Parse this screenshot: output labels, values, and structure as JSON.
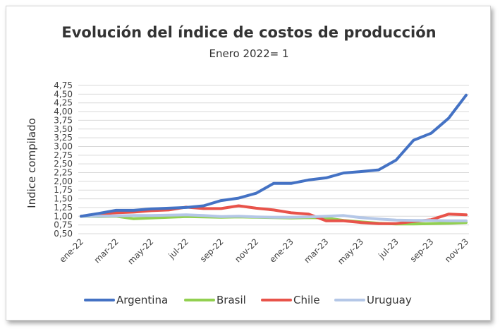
{
  "chart_data": {
    "type": "line",
    "title": "Evolución del índice de costos de producción",
    "subtitle": "Enero 2022= 1",
    "xlabel": "",
    "ylabel": "Indice compilado",
    "ylim": [
      0.5,
      4.75
    ],
    "yticks": [
      "0,50",
      "0,75",
      "1,00",
      "1,25",
      "1,50",
      "1,75",
      "2,00",
      "2,25",
      "2,50",
      "2,75",
      "3,00",
      "3,25",
      "3,50",
      "3,75",
      "4,00",
      "4,25",
      "4,50",
      "4,75"
    ],
    "xtick_labels": [
      "ene-22",
      "mar-22",
      "may-22",
      "jul-22",
      "sep-22",
      "nov-22",
      "ene-23",
      "mar-23",
      "may-23",
      "jul-23",
      "sep-23",
      "nov-23"
    ],
    "categories": [
      "ene-22",
      "feb-22",
      "mar-22",
      "abr-22",
      "may-22",
      "jun-22",
      "jul-22",
      "ago-22",
      "sep-22",
      "oct-22",
      "nov-22",
      "dic-22",
      "ene-23",
      "feb-23",
      "mar-23",
      "abr-23",
      "may-23",
      "jun-23",
      "jul-23",
      "ago-23",
      "sep-23",
      "oct-23",
      "nov-23"
    ],
    "grid": true,
    "legend": "bottom",
    "series": [
      {
        "name": "Argentina",
        "color": "#4472c4",
        "values": [
          1.0,
          1.08,
          1.17,
          1.17,
          1.21,
          1.23,
          1.25,
          1.3,
          1.45,
          1.52,
          1.66,
          1.94,
          1.94,
          2.04,
          2.1,
          2.24,
          2.28,
          2.33,
          2.61,
          3.18,
          3.38,
          3.81,
          4.47
        ]
      },
      {
        "name": "Brasil",
        "color": "#92d050",
        "values": [
          1.0,
          0.99,
          1.0,
          0.93,
          0.95,
          0.97,
          0.99,
          0.98,
          0.97,
          0.98,
          0.97,
          0.96,
          0.95,
          0.96,
          0.95,
          0.88,
          0.84,
          0.8,
          0.78,
          0.78,
          0.79,
          0.8,
          0.82
        ]
      },
      {
        "name": "Chile",
        "color": "#e8534a",
        "values": [
          1.0,
          1.06,
          1.1,
          1.12,
          1.16,
          1.18,
          1.26,
          1.22,
          1.22,
          1.3,
          1.23,
          1.18,
          1.1,
          1.06,
          0.87,
          0.87,
          0.82,
          0.79,
          0.79,
          0.85,
          0.9,
          1.06,
          1.04
        ]
      },
      {
        "name": "Uruguay",
        "color": "#b4c7e7",
        "values": [
          1.0,
          1.0,
          1.01,
          1.02,
          1.02,
          1.03,
          1.04,
          1.02,
          0.99,
          1.0,
          0.98,
          0.97,
          0.97,
          0.98,
          1.0,
          1.02,
          0.96,
          0.92,
          0.89,
          0.88,
          0.88,
          0.87,
          0.87
        ]
      }
    ]
  }
}
